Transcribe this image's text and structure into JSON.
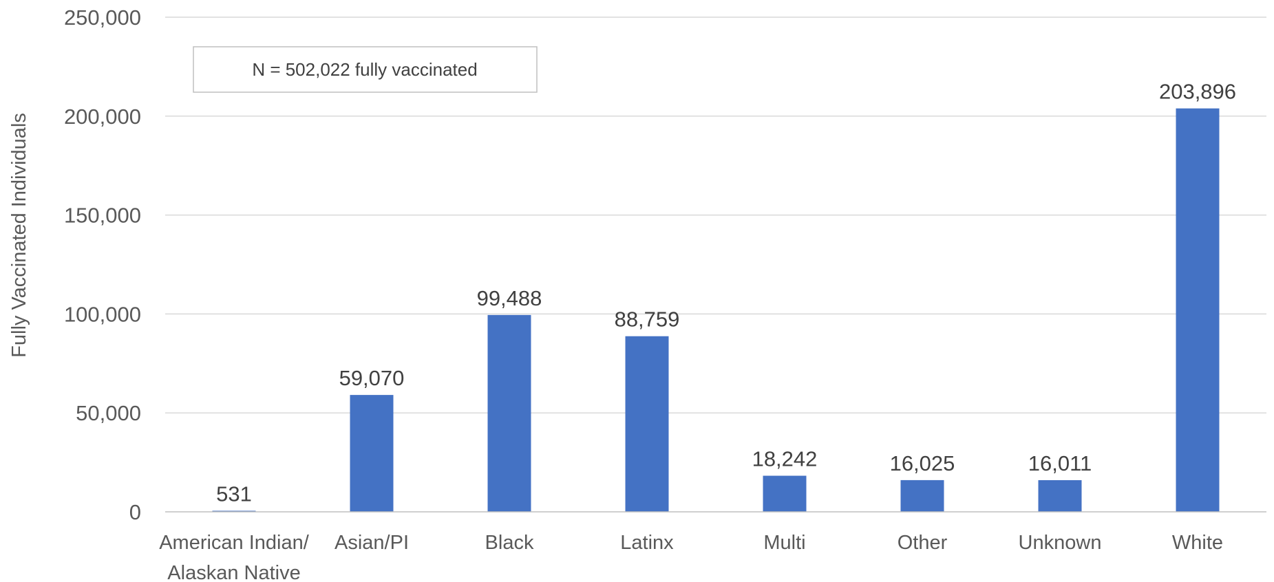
{
  "chart_data": {
    "type": "bar",
    "categories": [
      [
        "American Indian/",
        "Alaskan Native"
      ],
      [
        "Asian/PI"
      ],
      [
        "Black"
      ],
      [
        "Latinx"
      ],
      [
        "Multi"
      ],
      [
        "Other"
      ],
      [
        "Unknown"
      ],
      [
        "White"
      ]
    ],
    "values": [
      531,
      59070,
      99488,
      88759,
      18242,
      16025,
      16011,
      203896
    ],
    "data_labels": [
      "531",
      "59,070",
      "99,488",
      "88,759",
      "18,242",
      "16,025",
      "16,011",
      "203,896"
    ],
    "ylabel": "Fully Vaccinated Individuals",
    "xlabel": "",
    "ylim": [
      0,
      250000
    ],
    "yticks": [
      0,
      50000,
      100000,
      150000,
      200000,
      250000
    ],
    "ytick_labels": [
      "0",
      "50,000",
      "100,000",
      "150,000",
      "200,000",
      "250,000"
    ],
    "annotation": "N = 502,022 fully vaccinated",
    "grid": true,
    "legend": "none",
    "bar_color": "#4472c4"
  }
}
